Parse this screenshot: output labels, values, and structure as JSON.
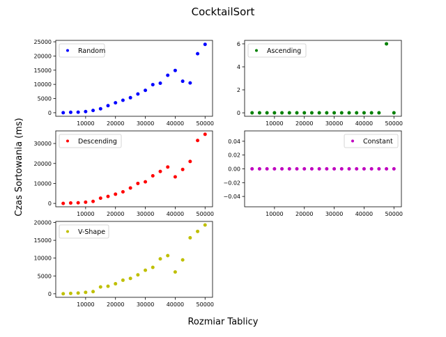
{
  "figure": {
    "title": "CocktailSort",
    "xlabel": "Rozmiar Tablicy",
    "ylabel": "Czas Sortowania (ms)"
  },
  "chart_data": [
    {
      "type": "scatter",
      "series": [
        {
          "name": "Random",
          "color": "#0000ff"
        }
      ],
      "legend_position": "upper-left",
      "x": [
        2500,
        5000,
        7500,
        10000,
        12500,
        15000,
        17500,
        20000,
        22500,
        25000,
        27500,
        30000,
        32500,
        35000,
        37500,
        40000,
        42500,
        45000,
        47500,
        50000
      ],
      "y": [
        0,
        150,
        200,
        400,
        800,
        1400,
        2500,
        3500,
        4400,
        5300,
        6600,
        7900,
        9900,
        10400,
        13200,
        14900,
        11100,
        10500,
        20800,
        24100
      ],
      "xlim": [
        0,
        52500
      ],
      "ylim": [
        -1250,
        25500
      ],
      "xticks": [
        10000,
        20000,
        30000,
        40000,
        50000
      ],
      "yticks": [
        0,
        5000,
        10000,
        15000,
        20000,
        25000
      ],
      "xtick_labels": [
        "10000",
        "20000",
        "30000",
        "40000",
        "50000"
      ],
      "ytick_labels": [
        "0",
        "5000",
        "10000",
        "15000",
        "20000",
        "25000"
      ]
    },
    {
      "type": "scatter",
      "series": [
        {
          "name": "Ascending",
          "color": "#008000"
        }
      ],
      "legend_position": "upper-left",
      "x": [
        2500,
        5000,
        7500,
        10000,
        12500,
        15000,
        17500,
        20000,
        22500,
        25000,
        27500,
        30000,
        32500,
        35000,
        37500,
        40000,
        42500,
        45000,
        47500,
        50000
      ],
      "y": [
        0,
        0,
        0,
        0,
        0,
        0,
        0,
        0,
        0,
        0,
        0,
        0,
        0,
        0,
        0,
        0,
        0,
        0,
        6,
        0
      ],
      "xlim": [
        0,
        52500
      ],
      "ylim": [
        -0.3,
        6.3
      ],
      "xticks": [
        10000,
        20000,
        30000,
        40000,
        50000
      ],
      "yticks": [
        0,
        2,
        4,
        6
      ],
      "xtick_labels": [
        "10000",
        "20000",
        "30000",
        "40000",
        "50000"
      ],
      "ytick_labels": [
        "0",
        "2",
        "4",
        "6"
      ]
    },
    {
      "type": "scatter",
      "series": [
        {
          "name": "Descending",
          "color": "#ff0000"
        }
      ],
      "legend_position": "upper-left",
      "x": [
        2500,
        5000,
        7500,
        10000,
        12500,
        15000,
        17500,
        20000,
        22500,
        25000,
        27500,
        30000,
        32500,
        35000,
        37500,
        40000,
        42500,
        45000,
        47500,
        50000
      ],
      "y": [
        0,
        200,
        300,
        600,
        1000,
        2600,
        3500,
        4600,
        5800,
        7700,
        10000,
        10800,
        13800,
        16000,
        18200,
        13300,
        17000,
        21000,
        31500,
        34600
      ],
      "xlim": [
        0,
        52500
      ],
      "ylim": [
        -1700,
        36300
      ],
      "xticks": [
        10000,
        20000,
        30000,
        40000,
        50000
      ],
      "yticks": [
        0,
        10000,
        20000,
        30000
      ],
      "xtick_labels": [
        "10000",
        "20000",
        "30000",
        "40000",
        "50000"
      ],
      "ytick_labels": [
        "0",
        "10000",
        "20000",
        "30000"
      ]
    },
    {
      "type": "scatter",
      "series": [
        {
          "name": "Constant",
          "color": "#bf00bf"
        }
      ],
      "legend_position": "upper-right",
      "x": [
        2500,
        5000,
        7500,
        10000,
        12500,
        15000,
        17500,
        20000,
        22500,
        25000,
        27500,
        30000,
        32500,
        35000,
        37500,
        40000,
        42500,
        45000,
        47500,
        50000
      ],
      "y": [
        0,
        0,
        0,
        0,
        0,
        0,
        0,
        0,
        0,
        0,
        0,
        0,
        0,
        0,
        0,
        0,
        0,
        0,
        0,
        0
      ],
      "xlim": [
        0,
        52500
      ],
      "ylim": [
        -0.055,
        0.055
      ],
      "xticks": [
        10000,
        20000,
        30000,
        40000,
        50000
      ],
      "yticks": [
        -0.04,
        -0.02,
        0,
        0.02,
        0.04
      ],
      "xtick_labels": [
        "10000",
        "20000",
        "30000",
        "40000",
        "50000"
      ],
      "ytick_labels": [
        "−0.04",
        "−0.02",
        "0.00",
        "0.02",
        "0.04"
      ]
    },
    {
      "type": "scatter",
      "series": [
        {
          "name": "V-Shape",
          "color": "#bfbf00"
        }
      ],
      "legend_position": "upper-left",
      "x": [
        2500,
        5000,
        7500,
        10000,
        12500,
        15000,
        17500,
        20000,
        22500,
        25000,
        27500,
        30000,
        32500,
        35000,
        37500,
        40000,
        42500,
        45000,
        47500,
        50000
      ],
      "y": [
        0,
        100,
        200,
        400,
        600,
        1900,
        2100,
        2800,
        3800,
        4300,
        5300,
        6600,
        7400,
        9800,
        10700,
        6100,
        9500,
        15700,
        17500,
        19300
      ],
      "xlim": [
        0,
        52500
      ],
      "ylim": [
        -1000,
        20300
      ],
      "xticks": [
        10000,
        20000,
        30000,
        40000,
        50000
      ],
      "yticks": [
        0,
        5000,
        10000,
        15000,
        20000
      ],
      "xtick_labels": [
        "10000",
        "20000",
        "30000",
        "40000",
        "50000"
      ],
      "ytick_labels": [
        "0",
        "5000",
        "10000",
        "15000",
        "20000"
      ]
    }
  ]
}
